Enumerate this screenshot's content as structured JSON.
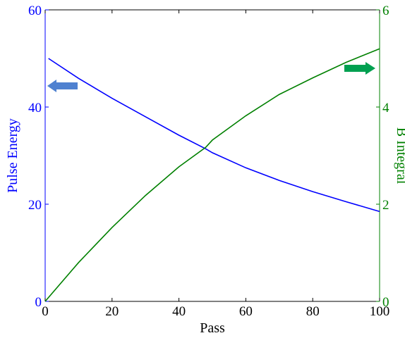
{
  "chart_data": {
    "type": "line",
    "xlabel": "Pass",
    "ylabel_left": "Pulse Energy",
    "ylabel_right": "B Integral",
    "xlim": [
      0,
      100
    ],
    "ylim_left": [
      0,
      60
    ],
    "ylim_right": [
      0,
      6
    ],
    "x_ticks": [
      0,
      20,
      40,
      60,
      80,
      100
    ],
    "y_ticks_left": [
      0,
      20,
      40,
      60
    ],
    "y_ticks_right": [
      0,
      2,
      4,
      6
    ],
    "grid": false,
    "series": [
      {
        "axis": "left",
        "color": "#0000ff",
        "x": [
          1,
          10,
          20,
          30,
          40,
          48,
          50,
          60,
          70,
          80,
          90,
          100
        ],
        "values": [
          50,
          45.9,
          41.8,
          38.0,
          34.2,
          31.4,
          30.6,
          27.5,
          24.9,
          22.6,
          20.5,
          18.5
        ]
      },
      {
        "axis": "right",
        "color": "#008000",
        "x": [
          0,
          10,
          20,
          30,
          40,
          48,
          50,
          60,
          70,
          80,
          90,
          100
        ],
        "values": [
          0,
          0.8,
          1.52,
          2.18,
          2.77,
          3.17,
          3.32,
          3.82,
          4.26,
          4.6,
          4.92,
          5.2
        ]
      }
    ],
    "annotations": [
      {
        "shape": "arrow-left",
        "color": "#4f81d0",
        "points_to": "left axis"
      },
      {
        "shape": "arrow-right",
        "color": "#00a050",
        "points_to": "right axis"
      }
    ],
    "colors": {
      "left_axis": "#0000ff",
      "right_axis": "#008000",
      "frame": "#000000"
    }
  }
}
